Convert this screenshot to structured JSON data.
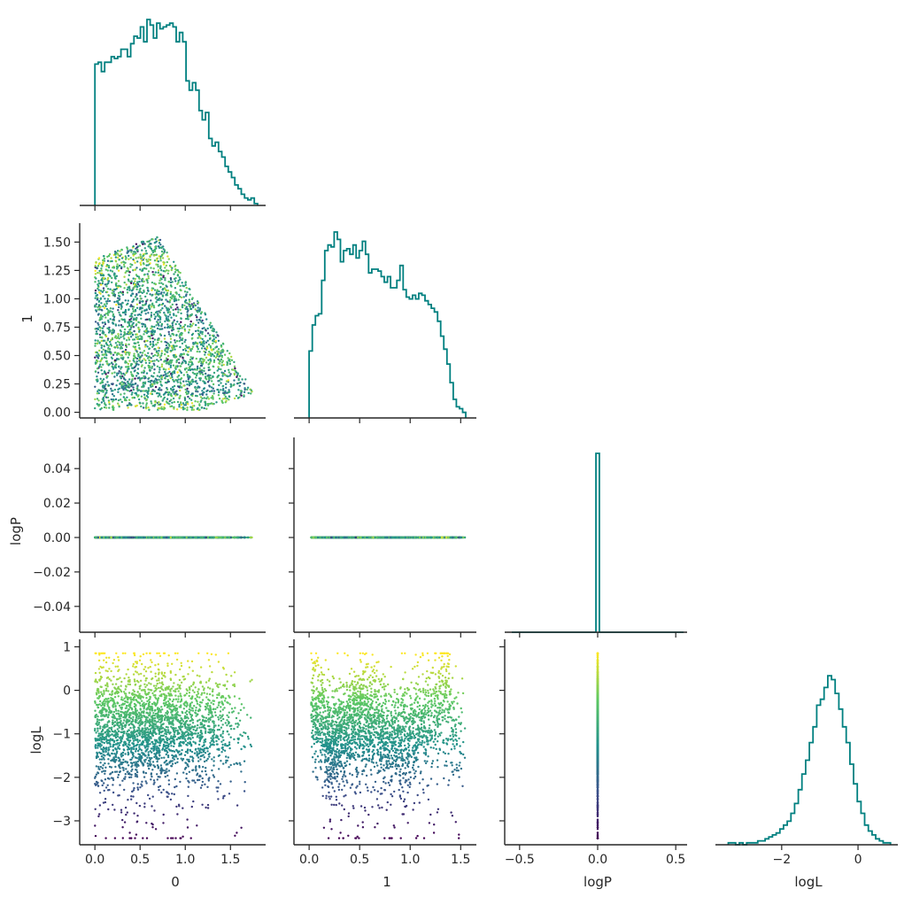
{
  "chart_data": {
    "type": "scatter",
    "variables": [
      "0",
      "1",
      "logP",
      "logL"
    ],
    "colormap": [
      "#440154",
      "#3b528b",
      "#21918c",
      "#5ec962",
      "#fde725"
    ],
    "hist_color": "#008080",
    "panels": {
      "hist_0": {
        "type": "histogram",
        "bins": [
          0.0,
          1.8
        ],
        "y": [
          0.76,
          0.77,
          0.72,
          0.77,
          0.77,
          0.8,
          0.79,
          0.8,
          0.84,
          0.84,
          0.8,
          0.87,
          0.91,
          0.9,
          0.96,
          0.88,
          1.0,
          0.97,
          0.9,
          0.98,
          0.95,
          0.96,
          0.97,
          0.98,
          0.96,
          0.88,
          0.93,
          0.88,
          0.67,
          0.62,
          0.66,
          0.62,
          0.51,
          0.46,
          0.5,
          0.36,
          0.32,
          0.34,
          0.29,
          0.26,
          0.21,
          0.18,
          0.15,
          0.11,
          0.09,
          0.06,
          0.04,
          0.03,
          0.04,
          0.01
        ]
      },
      "hist_1": {
        "type": "histogram",
        "bins": [
          0.0,
          1.55
        ],
        "y": [
          0.36,
          0.5,
          0.55,
          0.56,
          0.74,
          0.9,
          0.93,
          0.92,
          1.0,
          0.96,
          0.84,
          0.9,
          0.91,
          0.88,
          0.93,
          0.86,
          0.9,
          0.95,
          0.88,
          0.78,
          0.8,
          0.8,
          0.79,
          0.76,
          0.73,
          0.76,
          0.7,
          0.7,
          0.74,
          0.82,
          0.69,
          0.65,
          0.64,
          0.66,
          0.64,
          0.67,
          0.66,
          0.63,
          0.61,
          0.59,
          0.57,
          0.52,
          0.44,
          0.37,
          0.29,
          0.19,
          0.1,
          0.06,
          0.05,
          0.03
        ]
      },
      "hist_logP": {
        "type": "histogram",
        "xlim": [
          -0.55,
          0.55
        ],
        "spike_at": 0.0,
        "spike_height": 1.0
      },
      "hist_logL": {
        "type": "histogram",
        "bins": [
          -3.4,
          0.85
        ],
        "y": [
          0.01,
          0.01,
          0.0,
          0.01,
          0.0,
          0.01,
          0.01,
          0.01,
          0.02,
          0.02,
          0.03,
          0.04,
          0.05,
          0.06,
          0.08,
          0.1,
          0.12,
          0.16,
          0.21,
          0.28,
          0.36,
          0.43,
          0.52,
          0.6,
          0.71,
          0.74,
          0.8,
          0.86,
          0.84,
          0.77,
          0.69,
          0.6,
          0.52,
          0.41,
          0.31,
          0.22,
          0.16,
          0.1,
          0.07,
          0.05,
          0.03,
          0.02,
          0.01,
          0.01
        ]
      },
      "scatter_1_vs_0": {
        "n_points": 5000
      },
      "scatter_logP_vs_0": {
        "y_value": 0.0
      },
      "scatter_logP_vs_1": {
        "y_value": 0.0
      },
      "scatter_logL_vs_0": {
        "n_points": 5000
      },
      "scatter_logL_vs_1": {
        "n_points": 5000
      },
      "scatter_logL_vs_logP": {
        "x_value": 0.0
      }
    },
    "axes": {
      "x0": {
        "label": "0",
        "lim": [
          -0.09,
          1.85
        ],
        "ticks": [
          0.0,
          0.5,
          1.0,
          1.5
        ],
        "tick_labels": [
          "0.0",
          "0.5",
          "1.0",
          "1.5"
        ]
      },
      "x1": {
        "label": "1",
        "lim": [
          -0.08,
          1.62
        ],
        "ticks": [
          0.0,
          0.5,
          1.0,
          1.5
        ],
        "tick_labels": [
          "0.0",
          "0.5",
          "1.0",
          "1.5"
        ]
      },
      "xlogP": {
        "label": "logP",
        "lim": [
          -0.55,
          0.55
        ],
        "ticks": [
          -0.5,
          0.0,
          0.5
        ],
        "tick_labels": [
          "−0.5",
          "0.0",
          "0.5"
        ]
      },
      "xlogL": {
        "label": "logL",
        "lim": [
          -3.55,
          0.95
        ],
        "ticks": [
          -2,
          0
        ],
        "tick_labels": [
          "−2",
          "0"
        ]
      },
      "y1": {
        "label": "1",
        "lim": [
          -0.05,
          1.62
        ],
        "ticks": [
          0.0,
          0.25,
          0.5,
          0.75,
          1.0,
          1.25,
          1.5
        ],
        "tick_labels": [
          "0.00",
          "0.25",
          "0.50",
          "0.75",
          "1.00",
          "1.25",
          "1.50"
        ]
      },
      "ylogP": {
        "label": "logP",
        "lim": [
          -0.055,
          0.055
        ],
        "ticks": [
          -0.04,
          -0.02,
          0.0,
          0.02,
          0.04
        ],
        "tick_labels": [
          "−0.04",
          "−0.02",
          "0.00",
          "0.02",
          "0.04"
        ]
      },
      "ylogL": {
        "label": "logL",
        "lim": [
          -3.55,
          1.05
        ],
        "ticks": [
          -3,
          -2,
          -1,
          0,
          1
        ],
        "tick_labels": [
          "−3",
          "−2",
          "−1",
          "0",
          "1"
        ]
      }
    }
  }
}
